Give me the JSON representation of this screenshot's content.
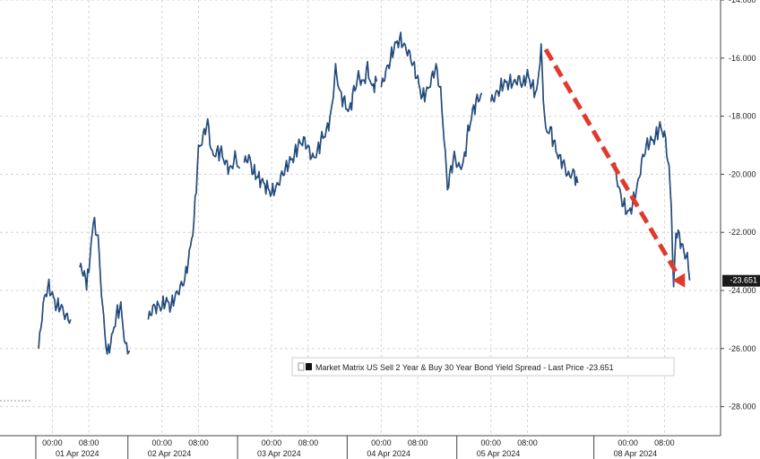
{
  "chart_data": {
    "type": "line",
    "title": "",
    "xlabel": "",
    "ylabel": "",
    "ylim": [
      -29,
      -14
    ],
    "y_ticks": [
      -14,
      -16,
      -18,
      -20,
      -22,
      -24,
      -26,
      -28
    ],
    "y_tick_labels": [
      "-14.000",
      "-16.000",
      "-18.000",
      "-20.000",
      "-22.000",
      "-24.000",
      "-26.000",
      "-28.000"
    ],
    "y_axis_side": "right",
    "grid": true,
    "x_range": [
      "2024-03-31T20:00",
      "2024-04-08T14:00"
    ],
    "date_labels": [
      {
        "date": "2024-04-01",
        "text": "01 Apr 2024"
      },
      {
        "date": "2024-04-02",
        "text": "02 Apr 2024"
      },
      {
        "date": "2024-04-03",
        "text": "03 Apr 2024"
      },
      {
        "date": "2024-04-04",
        "text": "04 Apr 2024"
      },
      {
        "date": "2024-04-05",
        "text": "05 Apr 2024"
      },
      {
        "date": "2024-04-08",
        "text": "08 Apr 2024"
      }
    ],
    "time_labels": [
      {
        "x": "2024-04-01T00:00",
        "text": "00:00"
      },
      {
        "x": "2024-04-01T08:00",
        "text": "08:00"
      },
      {
        "x": "2024-04-02T00:00",
        "text": "00:00"
      },
      {
        "x": "2024-04-02T08:00",
        "text": "08:00"
      },
      {
        "x": "2024-04-03T00:00",
        "text": "00:00"
      },
      {
        "x": "2024-04-03T08:00",
        "text": "08:00"
      },
      {
        "x": "2024-04-04T00:00",
        "text": "00:00"
      },
      {
        "x": "2024-04-04T08:00",
        "text": "08:00"
      },
      {
        "x": "2024-04-05T00:00",
        "text": "00:00"
      },
      {
        "x": "2024-04-05T08:00",
        "text": "08:00"
      },
      {
        "x": "2024-04-08T00:00",
        "text": "00:00"
      },
      {
        "x": "2024-04-08T08:00",
        "text": "08:00"
      }
    ],
    "series": [
      {
        "name": "Market Matrix US Sell 2 Year & Buy 30 Year Bond Yield Spread - Last Price",
        "color": "#1f5fa8",
        "segments": [
          [
            [
              "2024-03-31T21:00",
              -26.0
            ],
            [
              "2024-03-31T22:00",
              -24.5
            ],
            [
              "2024-03-31T23:00",
              -23.8
            ],
            [
              "2024-04-01T00:00",
              -24.2
            ],
            [
              "2024-04-01T01:00",
              -24.5
            ],
            [
              "2024-04-01T02:00",
              -24.6
            ],
            [
              "2024-04-01T03:00",
              -24.9
            ],
            [
              "2024-04-01T04:00",
              -25.0
            ]
          ],
          [
            [
              "2024-04-01T06:00",
              -23.2
            ],
            [
              "2024-04-01T07:00",
              -23.4
            ],
            [
              "2024-04-01T07:30",
              -23.9
            ],
            [
              "2024-04-01T08:30",
              -22.5
            ],
            [
              "2024-04-01T09:00",
              -21.6
            ],
            [
              "2024-04-01T10:00",
              -22.2
            ],
            [
              "2024-04-01T11:00",
              -24.6
            ],
            [
              "2024-04-01T12:00",
              -26.2
            ],
            [
              "2024-04-01T13:00",
              -25.7
            ],
            [
              "2024-04-01T14:00",
              -24.8
            ],
            [
              "2024-04-01T15:00",
              -24.6
            ],
            [
              "2024-04-01T16:00",
              -25.9
            ],
            [
              "2024-04-01T17:00",
              -26.1
            ]
          ],
          [
            [
              "2024-04-01T21:00",
              -25.0
            ],
            [
              "2024-04-01T22:00",
              -24.6
            ],
            [
              "2024-04-02T00:00",
              -24.5
            ],
            [
              "2024-04-02T01:00",
              -24.4
            ],
            [
              "2024-04-02T02:00",
              -24.5
            ],
            [
              "2024-04-02T03:00",
              -24.2
            ],
            [
              "2024-04-02T04:00",
              -23.9
            ],
            [
              "2024-04-02T05:00",
              -23.6
            ],
            [
              "2024-04-02T06:00",
              -22.8
            ],
            [
              "2024-04-02T07:00",
              -21.6
            ],
            [
              "2024-04-02T08:00",
              -19.2
            ],
            [
              "2024-04-02T09:00",
              -18.7
            ],
            [
              "2024-04-02T10:00",
              -18.2
            ],
            [
              "2024-04-02T11:00",
              -19.4
            ],
            [
              "2024-04-02T12:00",
              -19.2
            ],
            [
              "2024-04-02T13:00",
              -19.3
            ],
            [
              "2024-04-02T14:00",
              -19.6
            ],
            [
              "2024-04-02T15:00",
              -19.9
            ],
            [
              "2024-04-02T16:00",
              -19.4
            ],
            [
              "2024-04-02T17:00",
              -19.8
            ]
          ],
          [
            [
              "2024-04-02T18:00",
              -19.6
            ],
            [
              "2024-04-02T19:00",
              -19.4
            ],
            [
              "2024-04-02T20:00",
              -19.9
            ],
            [
              "2024-04-02T22:00",
              -20.3
            ],
            [
              "2024-04-03T00:00",
              -20.6
            ],
            [
              "2024-04-03T01:00",
              -20.5
            ],
            [
              "2024-04-03T02:00",
              -20.1
            ],
            [
              "2024-04-03T03:00",
              -19.8
            ],
            [
              "2024-04-03T04:00",
              -19.6
            ],
            [
              "2024-04-03T05:00",
              -19.3
            ],
            [
              "2024-04-03T06:00",
              -19.0
            ],
            [
              "2024-04-03T07:00",
              -18.8
            ],
            [
              "2024-04-03T08:00",
              -19.1
            ],
            [
              "2024-04-03T09:00",
              -19.5
            ],
            [
              "2024-04-03T10:00",
              -19.2
            ],
            [
              "2024-04-03T11:00",
              -18.8
            ],
            [
              "2024-04-03T12:00",
              -18.5
            ],
            [
              "2024-04-03T13:00",
              -18.0
            ],
            [
              "2024-04-03T14:00",
              -16.4
            ],
            [
              "2024-04-03T15:00",
              -17.2
            ],
            [
              "2024-04-03T16:00",
              -17.6
            ],
            [
              "2024-04-03T17:00",
              -17.8
            ],
            [
              "2024-04-03T18:00",
              -17.2
            ],
            [
              "2024-04-03T19:00",
              -16.6
            ],
            [
              "2024-04-03T20:00",
              -16.9
            ],
            [
              "2024-04-03T21:00",
              -16.4
            ],
            [
              "2024-04-03T22:00",
              -17.0
            ],
            [
              "2024-04-03T23:00",
              -16.8
            ]
          ],
          [
            [
              "2024-04-04T00:00",
              -17.0
            ],
            [
              "2024-04-04T01:00",
              -16.5
            ],
            [
              "2024-04-04T02:00",
              -16.0
            ],
            [
              "2024-04-04T03:00",
              -15.6
            ],
            [
              "2024-04-04T04:00",
              -15.3
            ],
            [
              "2024-04-04T05:00",
              -15.6
            ],
            [
              "2024-04-04T06:00",
              -15.8
            ],
            [
              "2024-04-04T07:00",
              -16.2
            ],
            [
              "2024-04-04T08:00",
              -16.8
            ],
            [
              "2024-04-04T09:00",
              -17.3
            ],
            [
              "2024-04-04T10:00",
              -17.2
            ],
            [
              "2024-04-04T11:00",
              -16.7
            ],
            [
              "2024-04-04T12:00",
              -16.3
            ],
            [
              "2024-04-04T13:00",
              -17.2
            ],
            [
              "2024-04-04T14:00",
              -19.2
            ],
            [
              "2024-04-04T14:30",
              -20.8
            ],
            [
              "2024-04-04T15:00",
              -20.0
            ],
            [
              "2024-04-04T16:00",
              -19.4
            ],
            [
              "2024-04-04T17:00",
              -19.8
            ],
            [
              "2024-04-04T18:00",
              -19.6
            ],
            [
              "2024-04-04T19:00",
              -18.6
            ],
            [
              "2024-04-04T20:00",
              -17.8
            ],
            [
              "2024-04-04T21:00",
              -17.5
            ],
            [
              "2024-04-04T22:00",
              -17.2
            ]
          ],
          [
            [
              "2024-04-05T00:00",
              -17.5
            ],
            [
              "2024-04-05T01:00",
              -17.3
            ],
            [
              "2024-04-05T02:00",
              -17.0
            ],
            [
              "2024-04-05T03:00",
              -16.9
            ],
            [
              "2024-04-05T04:00",
              -16.8
            ],
            [
              "2024-04-05T05:00",
              -16.9
            ],
            [
              "2024-04-05T06:00",
              -16.7
            ],
            [
              "2024-04-05T07:00",
              -16.9
            ],
            [
              "2024-04-05T08:00",
              -16.6
            ],
            [
              "2024-04-05T09:00",
              -16.9
            ],
            [
              "2024-04-05T10:00",
              -17.3
            ],
            [
              "2024-04-05T11:00",
              -15.6
            ],
            [
              "2024-04-05T11:30",
              -17.6
            ],
            [
              "2024-04-05T12:00",
              -18.6
            ],
            [
              "2024-04-05T13:00",
              -18.4
            ],
            [
              "2024-04-05T14:00",
              -19.1
            ],
            [
              "2024-04-05T15:00",
              -19.4
            ],
            [
              "2024-04-05T16:00",
              -19.7
            ],
            [
              "2024-04-05T17:00",
              -20.1
            ],
            [
              "2024-04-05T18:00",
              -19.9
            ],
            [
              "2024-04-05T19:00",
              -20.3
            ]
          ],
          [
            [
              "2024-04-07T21:00",
              -19.6
            ],
            [
              "2024-04-07T22:00",
              -20.5
            ],
            [
              "2024-04-07T23:00",
              -21.0
            ],
            [
              "2024-04-08T00:00",
              -21.4
            ],
            [
              "2024-04-08T01:00",
              -21.0
            ],
            [
              "2024-04-08T02:00",
              -20.5
            ],
            [
              "2024-04-08T03:00",
              -19.6
            ],
            [
              "2024-04-08T04:00",
              -19.0
            ],
            [
              "2024-04-08T05:00",
              -18.9
            ],
            [
              "2024-04-08T06:00",
              -18.7
            ],
            [
              "2024-04-08T07:00",
              -18.4
            ],
            [
              "2024-04-08T08:00",
              -18.6
            ],
            [
              "2024-04-08T09:00",
              -19.8
            ],
            [
              "2024-04-08T09:30",
              -21.4
            ],
            [
              "2024-04-08T10:00",
              -23.9
            ],
            [
              "2024-04-08T10:30",
              -22.3
            ],
            [
              "2024-04-08T11:00",
              -22.0
            ],
            [
              "2024-04-08T12:00",
              -22.6
            ],
            [
              "2024-04-08T13:00",
              -22.9
            ],
            [
              "2024-04-08T13:30",
              -23.651
            ]
          ]
        ]
      }
    ],
    "last_price_label": "-23.651",
    "last_price_value": -23.651,
    "arrow_color": "#e03a2f",
    "arrow_trend": [
      [
        "2024-04-05T12:00",
        -15.7
      ],
      [
        "2024-04-08T12:30",
        -23.9
      ]
    ],
    "legend": {
      "text": "Market Matrix US Sell 2 Year & Buy 30 Year Bond Yield Spread - Last Price -23.651",
      "placement": "bottom-right"
    }
  }
}
